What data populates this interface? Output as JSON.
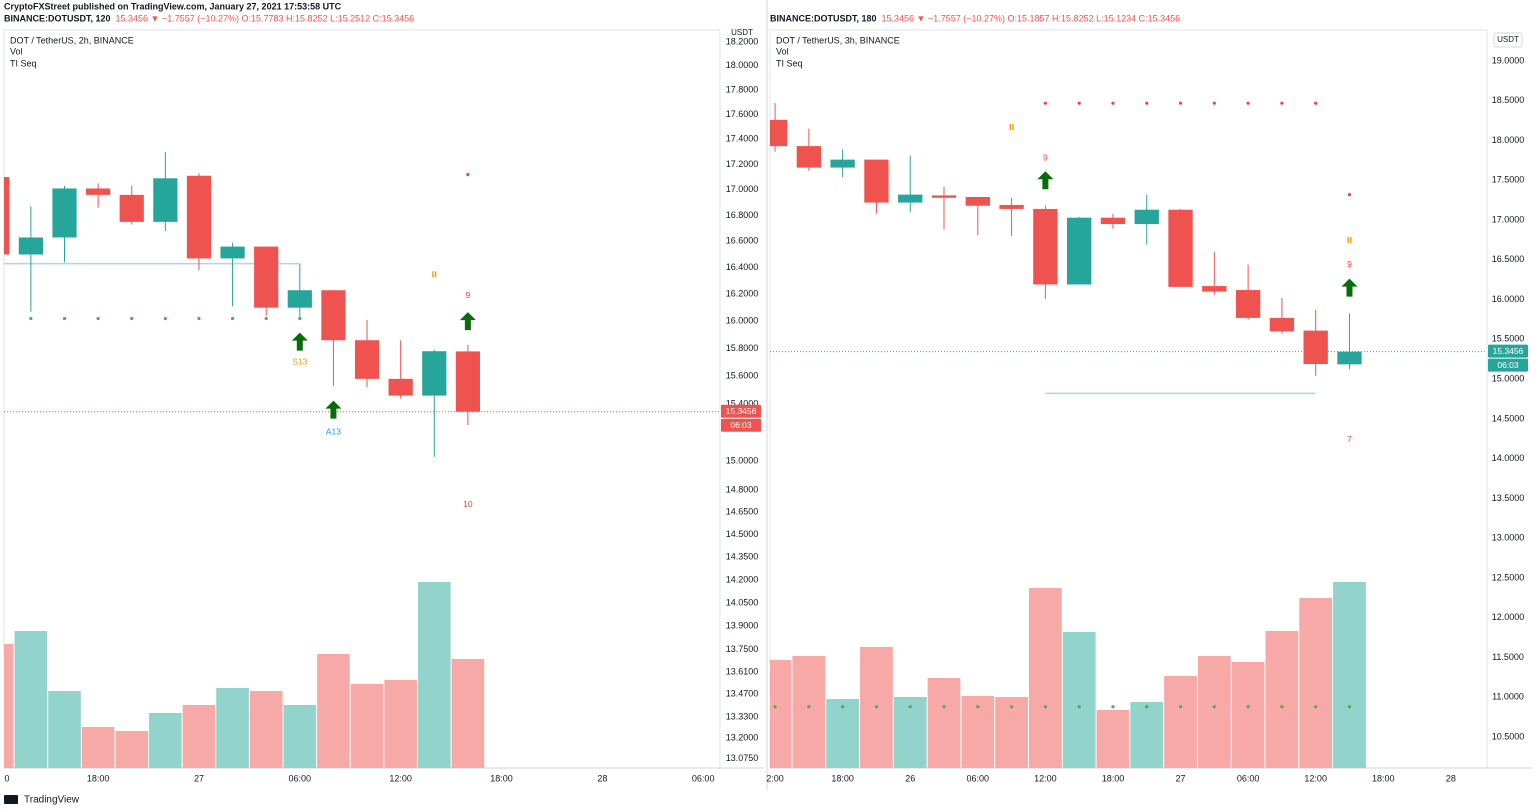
{
  "header": {
    "publisher": "CryptoFXStreet published on TradingView.com, January 27, 2021 17:53:58 UTC"
  },
  "footer": {
    "brand": "TradingView"
  },
  "chart_data": [
    {
      "type": "candlestick",
      "symbol": "BINANCE:DOTUSDT, 120",
      "quote": "15.3456 ▼ −1.7557 (−10.27%) O:15.7783 H:15.8252 L:15.2512 C:15.3456",
      "title": "DOT / TetherUS, 2h, BINANCE",
      "legend_items": [
        "Vol",
        "TI Seq"
      ],
      "axis_unit": "USDT",
      "log_scale": true,
      "ylim": [
        13.02,
        18.3
      ],
      "yticks": [
        {
          "value": 18.2,
          "label": "18.2000"
        },
        {
          "value": 18.0,
          "label": "18.0000"
        },
        {
          "value": 17.8,
          "label": "17.8000"
        },
        {
          "value": 17.6,
          "label": "17.6000"
        },
        {
          "value": 17.4,
          "label": "17.4000"
        },
        {
          "value": 17.2,
          "label": "17.2000"
        },
        {
          "value": 17.0,
          "label": "17.0000"
        },
        {
          "value": 16.8,
          "label": "16.8000"
        },
        {
          "value": 16.6,
          "label": "16.6000"
        },
        {
          "value": 16.4,
          "label": "16.4000"
        },
        {
          "value": 16.2,
          "label": "16.2000"
        },
        {
          "value": 16.0,
          "label": "16.0000"
        },
        {
          "value": 15.8,
          "label": "15.8000"
        },
        {
          "value": 15.6,
          "label": "15.6000"
        },
        {
          "value": 15.4,
          "label": "15.4000"
        },
        {
          "value": 15.0,
          "label": "15.0000"
        },
        {
          "value": 14.8,
          "label": "14.8000"
        },
        {
          "value": 14.65,
          "label": "14.6500"
        },
        {
          "value": 14.5,
          "label": "14.5000"
        },
        {
          "value": 14.35,
          "label": "14.3500"
        },
        {
          "value": 14.2,
          "label": "14.2000"
        },
        {
          "value": 14.05,
          "label": "14.0500"
        },
        {
          "value": 13.9,
          "label": "13.9000"
        },
        {
          "value": 13.75,
          "label": "13.7500"
        },
        {
          "value": 13.61,
          "label": "13.6100"
        },
        {
          "value": 13.47,
          "label": "13.4700"
        },
        {
          "value": 13.33,
          "label": "13.3300"
        },
        {
          "value": 13.2,
          "label": "13.2000"
        },
        {
          "value": 13.075,
          "label": "13.0750"
        }
      ],
      "xlim": [
        0.2,
        21.5
      ],
      "xticks": [
        {
          "value": 0,
          "label": "0"
        },
        {
          "value": 3,
          "label": "18:00"
        },
        {
          "value": 6,
          "label": "27"
        },
        {
          "value": 9,
          "label": "06:00"
        },
        {
          "value": 12,
          "label": "12:00"
        },
        {
          "value": 15,
          "label": "18:00"
        },
        {
          "value": 18,
          "label": "28"
        },
        {
          "value": 21,
          "label": "06:00"
        }
      ],
      "x": [
        0,
        1,
        2,
        3,
        4,
        5,
        6,
        7,
        8,
        9,
        10,
        11,
        12,
        13,
        14
      ],
      "open": [
        17.1,
        16.5,
        16.63,
        17.01,
        16.96,
        16.75,
        17.11,
        16.47,
        16.56,
        16.1,
        16.23,
        15.86,
        15.58,
        15.46,
        15.7783
      ],
      "high": [
        17.12,
        16.87,
        17.03,
        17.05,
        17.03,
        17.3,
        17.13,
        16.59,
        16.56,
        16.43,
        16.23,
        16.01,
        15.86,
        15.79,
        15.8252
      ],
      "low": [
        16.5,
        16.07,
        16.44,
        16.86,
        16.73,
        16.68,
        16.38,
        16.11,
        16.04,
        16.02,
        15.53,
        15.52,
        15.44,
        15.03,
        15.2512
      ],
      "close": [
        16.5,
        16.63,
        17.01,
        16.96,
        16.75,
        17.09,
        16.47,
        16.56,
        16.1,
        16.23,
        15.86,
        15.58,
        15.46,
        15.78,
        15.3456
      ],
      "volume": [
        124,
        137,
        77,
        41,
        37,
        55,
        63,
        80,
        77,
        63,
        114,
        84,
        88,
        186,
        109
      ],
      "volume_ylim": [
        0,
        738
      ],
      "up_color": "#26a69a",
      "down_color": "#ef5350",
      "volume_up_color": "#92d3cc",
      "volume_down_color": "#f7a9a7",
      "last_price": 15.3456,
      "last_price_color": "#ef5350",
      "countdown": "06:03",
      "hlines": [
        {
          "value": 16.43,
          "from": 0.2,
          "to": 9,
          "color": "#a6d9ea"
        }
      ],
      "seq_dots": [
        {
          "x": 1,
          "y": 16.02,
          "color": "#4caf50"
        },
        {
          "x": 2,
          "y": 16.02,
          "color": "#4caf50"
        },
        {
          "x": 3,
          "y": 16.02,
          "color": "#4caf50"
        },
        {
          "x": 4,
          "y": 16.02,
          "color": "#4caf50"
        },
        {
          "x": 5,
          "y": 16.02,
          "color": "#4caf50"
        },
        {
          "x": 6,
          "y": 16.02,
          "color": "#4caf50"
        },
        {
          "x": 7,
          "y": 16.02,
          "color": "#4caf50"
        },
        {
          "x": 8,
          "y": 16.02,
          "color": "#4caf50"
        },
        {
          "x": 9,
          "y": 16.02,
          "color": "#4caf50"
        },
        {
          "x": 14,
          "y": 17.12,
          "color": "#f44336"
        }
      ],
      "arrows": [
        {
          "x": 9,
          "y": 15.85
        },
        {
          "x": 10,
          "y": 15.36
        },
        {
          "x": 14,
          "y": 16.0
        }
      ],
      "flags": [
        {
          "x": 13,
          "y": 16.35
        }
      ],
      "seq_labels": [
        {
          "text": "S13",
          "x": 9,
          "y": 15.7,
          "color": "#ff9800"
        },
        {
          "text": "A13",
          "x": 10,
          "y": 15.2,
          "color": "#2196f3"
        },
        {
          "text": "9",
          "x": 14,
          "y": 16.19,
          "color": "#f44336"
        },
        {
          "text": "10",
          "x": 14,
          "y": 14.7,
          "color": "#f44336"
        }
      ]
    },
    {
      "type": "candlestick",
      "symbol": "BINANCE:DOTUSDT, 180",
      "quote": "15.3456 ▼ −1.7557 (−10.27%) O:15.1857 H:15.8252 L:15.1234 C:15.3456",
      "title": "DOT / TetherUS, 3h, BINANCE",
      "legend_items": [
        "Vol",
        "TI Seq"
      ],
      "axis_unit": "USDT",
      "log_scale": false,
      "ylim": [
        10.11,
        19.39
      ],
      "yticks": [
        {
          "value": 19.0,
          "label": "19.0000"
        },
        {
          "value": 18.5,
          "label": "18.5000"
        },
        {
          "value": 18.0,
          "label": "18.0000"
        },
        {
          "value": 17.5,
          "label": "17.5000"
        },
        {
          "value": 17.0,
          "label": "17.0000"
        },
        {
          "value": 16.5,
          "label": "16.5000"
        },
        {
          "value": 16.0,
          "label": "16.0000"
        },
        {
          "value": 15.5,
          "label": "15.5000"
        },
        {
          "value": 15.0,
          "label": "15.0000"
        },
        {
          "value": 14.5,
          "label": "14.5000"
        },
        {
          "value": 14.0,
          "label": "14.0000"
        },
        {
          "value": 13.5,
          "label": "13.5000"
        },
        {
          "value": 13.0,
          "label": "13.0000"
        },
        {
          "value": 12.5,
          "label": "12.5000"
        },
        {
          "value": 12.0,
          "label": "12.0000"
        },
        {
          "value": 11.5,
          "label": "11.5000"
        },
        {
          "value": 11.0,
          "label": "11.0000"
        },
        {
          "value": 10.5,
          "label": "10.5000"
        }
      ],
      "xlim": [
        -0.15,
        21.07
      ],
      "xticks": [
        {
          "value": 0,
          "label": "2:00"
        },
        {
          "value": 2,
          "label": "18:00"
        },
        {
          "value": 4,
          "label": "26"
        },
        {
          "value": 6,
          "label": "06:00"
        },
        {
          "value": 8,
          "label": "12:00"
        },
        {
          "value": 10,
          "label": "18:00"
        },
        {
          "value": 12,
          "label": "27"
        },
        {
          "value": 14,
          "label": "06:00"
        },
        {
          "value": 16,
          "label": "12:00"
        },
        {
          "value": 18,
          "label": "18:00"
        },
        {
          "value": 20,
          "label": "28"
        }
      ],
      "x": [
        0,
        1,
        2,
        3,
        4,
        5,
        6,
        7,
        8,
        9,
        10,
        11,
        12,
        13,
        14,
        15,
        16,
        17
      ],
      "open": [
        18.26,
        17.93,
        17.66,
        17.76,
        17.22,
        17.31,
        17.29,
        17.19,
        17.14,
        16.19,
        17.03,
        16.95,
        17.13,
        16.17,
        16.12,
        15.77,
        15.61,
        15.1857
      ],
      "high": [
        18.47,
        18.15,
        17.89,
        17.76,
        17.81,
        17.42,
        17.29,
        17.28,
        17.18,
        17.04,
        17.08,
        17.32,
        17.14,
        16.6,
        16.44,
        16.02,
        15.87,
        15.8252
      ],
      "low": [
        17.86,
        17.62,
        17.54,
        17.08,
        17.1,
        16.88,
        16.81,
        16.8,
        16.01,
        16.19,
        16.89,
        16.69,
        16.16,
        16.06,
        15.75,
        15.57,
        15.04,
        15.1234
      ],
      "close": [
        17.93,
        17.66,
        17.76,
        17.22,
        17.32,
        17.28,
        17.18,
        17.14,
        16.19,
        17.03,
        16.95,
        17.13,
        16.16,
        16.1,
        15.77,
        15.6,
        15.19,
        15.3456
      ],
      "volume": [
        108,
        112,
        69,
        121,
        71,
        90,
        72,
        71,
        180,
        136,
        58,
        66,
        92,
        112,
        106,
        137,
        170,
        186
      ],
      "volume_ylim": [
        0,
        738
      ],
      "up_color": "#26a69a",
      "down_color": "#ef5350",
      "volume_up_color": "#92d3cc",
      "volume_down_color": "#f7a9a7",
      "last_price": 15.3456,
      "last_price_color": "#26a69a",
      "countdown": "06:03",
      "hlines": [
        {
          "value": 14.82,
          "from": 8,
          "to": 16,
          "color": "#a6d9ea"
        }
      ],
      "seq_dots": [
        {
          "x": 8,
          "y": 18.47,
          "color": "#f44336"
        },
        {
          "x": 9,
          "y": 18.47,
          "color": "#f44336"
        },
        {
          "x": 10,
          "y": 18.47,
          "color": "#f44336"
        },
        {
          "x": 11,
          "y": 18.47,
          "color": "#f44336"
        },
        {
          "x": 12,
          "y": 18.47,
          "color": "#f44336"
        },
        {
          "x": 13,
          "y": 18.47,
          "color": "#f44336"
        },
        {
          "x": 14,
          "y": 18.47,
          "color": "#f44336"
        },
        {
          "x": 15,
          "y": 18.47,
          "color": "#f44336"
        },
        {
          "x": 16,
          "y": 18.47,
          "color": "#f44336"
        },
        {
          "x": 17,
          "y": 17.32,
          "color": "#f44336"
        },
        {
          "x": 0,
          "y": 10.88,
          "color": "#4caf50"
        },
        {
          "x": 1,
          "y": 10.88,
          "color": "#4caf50"
        },
        {
          "x": 2,
          "y": 10.88,
          "color": "#4caf50"
        },
        {
          "x": 3,
          "y": 10.88,
          "color": "#4caf50"
        },
        {
          "x": 4,
          "y": 10.88,
          "color": "#4caf50"
        },
        {
          "x": 5,
          "y": 10.88,
          "color": "#4caf50"
        },
        {
          "x": 6,
          "y": 10.88,
          "color": "#4caf50"
        },
        {
          "x": 7,
          "y": 10.88,
          "color": "#4caf50"
        },
        {
          "x": 8,
          "y": 10.88,
          "color": "#4caf50"
        },
        {
          "x": 9,
          "y": 10.88,
          "color": "#4caf50"
        },
        {
          "x": 10,
          "y": 10.88,
          "color": "#4caf50"
        },
        {
          "x": 11,
          "y": 10.88,
          "color": "#4caf50"
        },
        {
          "x": 12,
          "y": 10.88,
          "color": "#4caf50"
        },
        {
          "x": 13,
          "y": 10.88,
          "color": "#4caf50"
        },
        {
          "x": 14,
          "y": 10.88,
          "color": "#4caf50"
        },
        {
          "x": 15,
          "y": 10.88,
          "color": "#4caf50"
        },
        {
          "x": 16,
          "y": 10.88,
          "color": "#4caf50"
        },
        {
          "x": 17,
          "y": 10.88,
          "color": "#4caf50"
        }
      ],
      "arrows": [
        {
          "x": 8,
          "y": 17.5
        },
        {
          "x": 17,
          "y": 16.15
        }
      ],
      "flags": [
        {
          "x": 7,
          "y": 18.17
        },
        {
          "x": 17,
          "y": 16.75
        }
      ],
      "seq_labels": [
        {
          "text": "9",
          "x": 8,
          "y": 17.78,
          "color": "#f44336"
        },
        {
          "text": "9",
          "x": 17,
          "y": 16.44,
          "color": "#f44336"
        },
        {
          "text": "7",
          "x": 17,
          "y": 14.24,
          "color": "#f44336"
        }
      ]
    }
  ]
}
